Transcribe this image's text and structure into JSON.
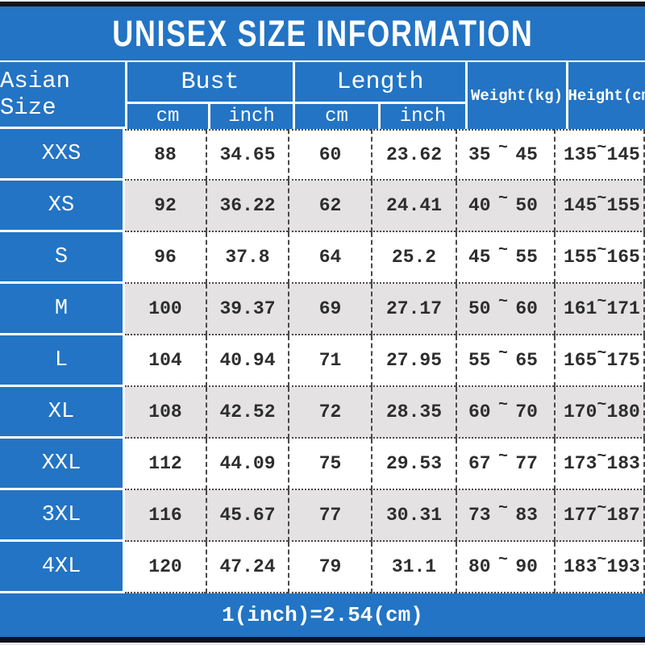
{
  "title": "UNISEX SIZE INFORMATION",
  "header": {
    "size_column": "Asian Size",
    "bust": {
      "label": "Bust",
      "sub_cm": "cm",
      "sub_inch": "inch"
    },
    "length": {
      "label": "Length",
      "sub_cm": "cm",
      "sub_inch": "inch"
    },
    "weight": "Weight(kg)",
    "height": "Height(cm)"
  },
  "misc": {
    "tilde": "~"
  },
  "rows": [
    {
      "size": "XXS",
      "bust_cm": "88",
      "bust_inch": "34.65",
      "length_cm": "60",
      "length_inch": "23.62",
      "weight_min": "35",
      "weight_max": "45",
      "height_min": "135",
      "height_max": "145"
    },
    {
      "size": "XS",
      "bust_cm": "92",
      "bust_inch": "36.22",
      "length_cm": "62",
      "length_inch": "24.41",
      "weight_min": "40",
      "weight_max": "50",
      "height_min": "145",
      "height_max": "155"
    },
    {
      "size": "S",
      "bust_cm": "96",
      "bust_inch": "37.8",
      "length_cm": "64",
      "length_inch": "25.2",
      "weight_min": "45",
      "weight_max": "55",
      "height_min": "155",
      "height_max": "165"
    },
    {
      "size": "M",
      "bust_cm": "100",
      "bust_inch": "39.37",
      "length_cm": "69",
      "length_inch": "27.17",
      "weight_min": "50",
      "weight_max": "60",
      "height_min": "161",
      "height_max": "171"
    },
    {
      "size": "L",
      "bust_cm": "104",
      "bust_inch": "40.94",
      "length_cm": "71",
      "length_inch": "27.95",
      "weight_min": "55",
      "weight_max": "65",
      "height_min": "165",
      "height_max": "175"
    },
    {
      "size": "XL",
      "bust_cm": "108",
      "bust_inch": "42.52",
      "length_cm": "72",
      "length_inch": "28.35",
      "weight_min": "60",
      "weight_max": "70",
      "height_min": "170",
      "height_max": "180"
    },
    {
      "size": "XXL",
      "bust_cm": "112",
      "bust_inch": "44.09",
      "length_cm": "75",
      "length_inch": "29.53",
      "weight_min": "67",
      "weight_max": "77",
      "height_min": "173",
      "height_max": "183"
    },
    {
      "size": "3XL",
      "bust_cm": "116",
      "bust_inch": "45.67",
      "length_cm": "77",
      "length_inch": "30.31",
      "weight_min": "73",
      "weight_max": "83",
      "height_min": "177",
      "height_max": "187"
    },
    {
      "size": "4XL",
      "bust_cm": "120",
      "bust_inch": "47.24",
      "length_cm": "79",
      "length_inch": "31.1",
      "weight_min": "80",
      "weight_max": "90",
      "height_min": "183",
      "height_max": "193"
    }
  ],
  "footer": {
    "note": "1(inch)=2.54(cm)"
  },
  "colors": {
    "blue": "#2374c4",
    "row_white": "#ffffff",
    "row_alt": "#e4e2e3",
    "text_dark": "#2d2d2d",
    "text_white": "#ffffff",
    "line": "#4a4a4a",
    "bar_black": "#14141c"
  },
  "chart_data": {
    "type": "table",
    "title": "UNISEX SIZE INFORMATION",
    "columns": [
      "Asian Size",
      "Bust cm",
      "Bust inch",
      "Length cm",
      "Length inch",
      "Weight(kg)",
      "Height(cm)"
    ],
    "rows": [
      [
        "XXS",
        "88",
        "34.65",
        "60",
        "23.62",
        "35~45",
        "135~145"
      ],
      [
        "XS",
        "92",
        "36.22",
        "62",
        "24.41",
        "40~50",
        "145~155"
      ],
      [
        "S",
        "96",
        "37.8",
        "64",
        "25.2",
        "45~55",
        "155~165"
      ],
      [
        "M",
        "100",
        "39.37",
        "69",
        "27.17",
        "50~60",
        "161~171"
      ],
      [
        "L",
        "104",
        "40.94",
        "71",
        "27.95",
        "55~65",
        "165~175"
      ],
      [
        "XL",
        "108",
        "42.52",
        "72",
        "28.35",
        "60~70",
        "170~180"
      ],
      [
        "XXL",
        "112",
        "44.09",
        "75",
        "29.53",
        "67~77",
        "173~183"
      ],
      [
        "3XL",
        "116",
        "45.67",
        "77",
        "30.31",
        "73~83",
        "177~187"
      ],
      [
        "4XL",
        "120",
        "47.24",
        "79",
        "31.1",
        "80~90",
        "183~193"
      ]
    ],
    "note": "1(inch)=2.54(cm)"
  }
}
